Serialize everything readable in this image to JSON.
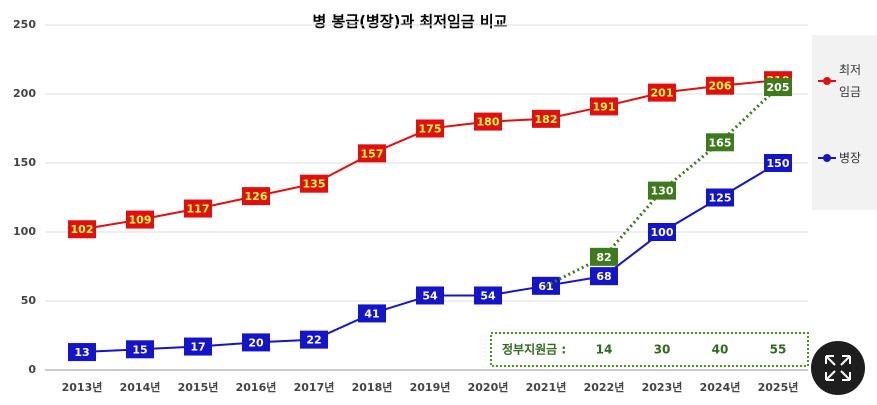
{
  "chart_data": {
    "type": "line",
    "title": "병 봉급(병장)과 최저임금 비교",
    "categories": [
      "2013년",
      "2014년",
      "2015년",
      "2016년",
      "2017년",
      "2018년",
      "2019년",
      "2020년",
      "2021년",
      "2022년",
      "2023년",
      "2024년",
      "2025년"
    ],
    "series": [
      {
        "name": "최저임금",
        "color": "#e01010",
        "label_color": "#ffff40",
        "values": [
          102,
          109,
          117,
          126,
          135,
          157,
          175,
          180,
          182,
          191,
          201,
          206,
          210
        ]
      },
      {
        "name": "병장",
        "color": "#1414c8",
        "label_color": "#ffffff",
        "values": [
          13,
          15,
          17,
          20,
          22,
          41,
          54,
          54,
          61,
          68,
          100,
          125,
          150
        ]
      },
      {
        "color": "#3f7a1e",
        "label_color": "#ffffff",
        "dashed": true,
        "values": [
          null,
          null,
          null,
          null,
          null,
          null,
          null,
          null,
          61,
          82,
          130,
          165,
          205
        ],
        "value_labels": [
          null,
          null,
          null,
          null,
          null,
          null,
          null,
          null,
          null,
          "82",
          "130",
          "165",
          "205"
        ]
      }
    ],
    "ylim": [
      0,
      250
    ],
    "yticks": [
      0,
      50,
      100,
      150,
      200,
      250
    ],
    "grid": true,
    "annotation": {
      "label": "정부지원금 :",
      "values": [
        14,
        30,
        40,
        55
      ]
    }
  }
}
